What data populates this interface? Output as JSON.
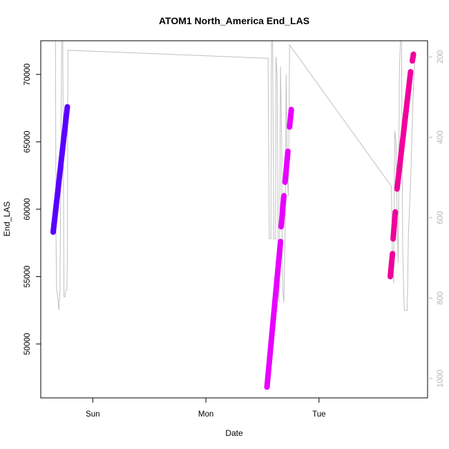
{
  "chart_data": {
    "type": "scatter",
    "title": "ATOM1 North_America End_LAS",
    "xlabel": "Date",
    "ylabel": "End_LAS",
    "x_ticks": [
      {
        "label": "Sun",
        "x": 0.0
      },
      {
        "label": "Mon",
        "x": 1.0
      },
      {
        "label": "Tue",
        "x": 2.0
      }
    ],
    "xlim": [
      -0.46,
      2.96
    ],
    "ylim": [
      46000,
      72500
    ],
    "y_ticks": [
      50000,
      55000,
      60000,
      65000,
      70000
    ],
    "right_axis": {
      "ylim": [
        1048,
        160
      ],
      "ticks": [
        200,
        400,
        600,
        800,
        1000
      ],
      "color": "#b8b8b8"
    },
    "grey_line": {
      "color": "#c0c0c0",
      "points": [
        [
          -0.33,
          72500
        ],
        [
          -0.325,
          58000
        ],
        [
          -0.32,
          54000
        ],
        [
          -0.31,
          53500
        ],
        [
          -0.3,
          52500
        ],
        [
          -0.29,
          54000
        ],
        [
          -0.275,
          72500
        ],
        [
          -0.265,
          72500
        ],
        [
          -0.255,
          53500
        ],
        [
          -0.245,
          53500
        ],
        [
          -0.24,
          54000
        ],
        [
          -0.23,
          54000
        ],
        [
          -0.225,
          56000
        ],
        [
          -0.22,
          71800
        ],
        [
          1.55,
          71200
        ],
        [
          1.56,
          57800
        ],
        [
          1.575,
          57800
        ],
        [
          1.58,
          72500
        ],
        [
          1.59,
          72500
        ],
        [
          1.6,
          57800
        ],
        [
          1.615,
          57800
        ],
        [
          1.62,
          71300
        ],
        [
          1.63,
          70000
        ],
        [
          1.64,
          55000
        ],
        [
          1.645,
          53100
        ],
        [
          1.65,
          55000
        ],
        [
          1.66,
          70600
        ],
        [
          1.67,
          65000
        ],
        [
          1.675,
          57000
        ],
        [
          1.68,
          54000
        ],
        [
          1.69,
          53100
        ],
        [
          1.7,
          58000
        ],
        [
          1.71,
          70000
        ],
        [
          1.72,
          62000
        ],
        [
          1.73,
          61000
        ],
        [
          1.74,
          72200
        ],
        [
          2.64,
          61700
        ],
        [
          2.65,
          56000
        ],
        [
          2.66,
          54500
        ],
        [
          2.67,
          65800
        ],
        [
          2.68,
          65000
        ],
        [
          2.69,
          60000
        ],
        [
          2.7,
          56000
        ],
        [
          2.705,
          60000
        ],
        [
          2.71,
          70000
        ],
        [
          2.72,
          72500
        ],
        [
          2.73,
          72500
        ],
        [
          2.74,
          57000
        ],
        [
          2.75,
          53500
        ],
        [
          2.755,
          52500
        ],
        [
          2.78,
          52500
        ],
        [
          2.785,
          55000
        ],
        [
          2.79,
          58000
        ],
        [
          2.8,
          60000
        ],
        [
          2.81,
          62000
        ],
        [
          2.82,
          65000
        ],
        [
          2.83,
          68000
        ],
        [
          2.84,
          70000
        ],
        [
          2.85,
          71500
        ]
      ]
    },
    "segments": [
      {
        "color": "#5a00ff",
        "x": [
          -0.35,
          -0.225
        ],
        "y": [
          58300,
          67600
        ]
      },
      {
        "color": "#e800ff",
        "x": [
          1.54,
          1.66
        ],
        "y": [
          46800,
          57600
        ]
      },
      {
        "color": "#e800ff",
        "x": [
          1.665,
          1.69
        ],
        "y": [
          58700,
          61000
        ]
      },
      {
        "color": "#e800ff",
        "x": [
          1.7,
          1.725
        ],
        "y": [
          62000,
          64300
        ]
      },
      {
        "color": "#e800ff",
        "x": [
          1.74,
          1.755
        ],
        "y": [
          66100,
          67400
        ]
      },
      {
        "color": "#f0009c",
        "x": [
          2.63,
          2.65
        ],
        "y": [
          55000,
          56700
        ]
      },
      {
        "color": "#f0009c",
        "x": [
          2.655,
          2.675
        ],
        "y": [
          57800,
          59800
        ]
      },
      {
        "color": "#f0009c",
        "x": [
          2.69,
          2.81
        ],
        "y": [
          61500,
          70200
        ]
      },
      {
        "color": "#f0009c",
        "x": [
          2.825,
          2.835
        ],
        "y": [
          71000,
          71500
        ]
      }
    ]
  }
}
